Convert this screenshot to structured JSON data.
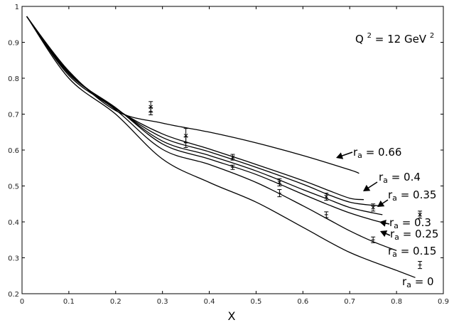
{
  "chart_data": {
    "type": "line",
    "xlabel": "X",
    "ylabel": "",
    "xlim": [
      0,
      0.9
    ],
    "ylim": [
      0.2,
      1.0
    ],
    "xticks": [
      "0",
      "0.1",
      "0.2",
      "0.3",
      "0.4",
      "0.5",
      "0.6",
      "0.7",
      "0.8",
      "0.9"
    ],
    "yticks": [
      "0.2",
      "0.3",
      "0.4",
      "0.5",
      "0.6",
      "0.7",
      "0.8",
      "0.9",
      "1"
    ],
    "annotation": {
      "text": "Q",
      "sup1": "2",
      "mid": "= 12 GeV",
      "sup2": "2"
    },
    "series": [
      {
        "name": "rₐ = 0.66",
        "label_prefix": "r",
        "label_sub": "a",
        "label_value": " = 0.66",
        "x": [
          0.01,
          0.1,
          0.2,
          0.3,
          0.4,
          0.5,
          0.6,
          0.7,
          0.72
        ],
        "y": [
          0.972,
          0.82,
          0.71,
          0.675,
          0.65,
          0.62,
          0.585,
          0.545,
          0.535
        ]
      },
      {
        "name": "rₐ = 0.4",
        "label_prefix": "r",
        "label_sub": "a",
        "label_value": " = 0.4",
        "x": [
          0.01,
          0.1,
          0.2,
          0.3,
          0.4,
          0.5,
          0.6,
          0.65,
          0.7,
          0.73
        ],
        "y": [
          0.972,
          0.817,
          0.715,
          0.645,
          0.603,
          0.56,
          0.515,
          0.49,
          0.466,
          0.462
        ]
      },
      {
        "name": "rₐ = 0.35",
        "label_prefix": "r",
        "label_sub": "a",
        "label_value": " = 0.35",
        "x": [
          0.01,
          0.1,
          0.2,
          0.3,
          0.4,
          0.5,
          0.6,
          0.65,
          0.7,
          0.75,
          0.77
        ],
        "y": [
          0.972,
          0.815,
          0.716,
          0.635,
          0.595,
          0.552,
          0.505,
          0.478,
          0.455,
          0.446,
          0.446
        ]
      },
      {
        "name": "rₐ = 0.3",
        "label_prefix": "r",
        "label_sub": "a",
        "label_value": " = 0.3",
        "x": [
          0.01,
          0.1,
          0.2,
          0.3,
          0.4,
          0.5,
          0.6,
          0.65,
          0.7,
          0.75,
          0.77
        ],
        "y": [
          0.972,
          0.813,
          0.717,
          0.625,
          0.585,
          0.542,
          0.49,
          0.465,
          0.44,
          0.425,
          0.42
        ]
      },
      {
        "name": "rₐ = 0.25",
        "label_prefix": "r",
        "label_sub": "a",
        "label_value": " = 0.25",
        "x": [
          0.01,
          0.1,
          0.2,
          0.3,
          0.4,
          0.5,
          0.6,
          0.65,
          0.7,
          0.75,
          0.78
        ],
        "y": [
          0.972,
          0.812,
          0.718,
          0.617,
          0.575,
          0.532,
          0.477,
          0.45,
          0.425,
          0.405,
          0.395
        ]
      },
      {
        "name": "rₐ = 0.15",
        "label_prefix": "r",
        "label_sub": "a",
        "label_value": " = 0.15",
        "x": [
          0.01,
          0.1,
          0.2,
          0.3,
          0.4,
          0.5,
          0.6,
          0.65,
          0.7,
          0.75,
          0.8
        ],
        "y": [
          0.972,
          0.808,
          0.712,
          0.602,
          0.56,
          0.51,
          0.445,
          0.41,
          0.375,
          0.345,
          0.32
        ]
      },
      {
        "name": "rₐ = 0",
        "label_prefix": "r",
        "label_sub": "a",
        "label_value": " = 0",
        "x": [
          0.01,
          0.1,
          0.2,
          0.3,
          0.4,
          0.5,
          0.6,
          0.7,
          0.8,
          0.84
        ],
        "y": [
          0.972,
          0.8,
          0.7,
          0.575,
          0.51,
          0.455,
          0.385,
          0.315,
          0.265,
          0.245
        ]
      }
    ],
    "data_points": [
      {
        "x": 0.275,
        "y": 0.72,
        "err": 0.015,
        "marker": "x"
      },
      {
        "x": 0.275,
        "y": 0.708,
        "err": 0.01,
        "marker": "+"
      },
      {
        "x": 0.35,
        "y": 0.64,
        "err": 0.02,
        "marker": "x"
      },
      {
        "x": 0.35,
        "y": 0.622,
        "err": 0.015,
        "marker": "+"
      },
      {
        "x": 0.45,
        "y": 0.58,
        "err": 0.008,
        "marker": "x"
      },
      {
        "x": 0.45,
        "y": 0.552,
        "err": 0.006,
        "marker": "+"
      },
      {
        "x": 0.55,
        "y": 0.51,
        "err": 0.01,
        "marker": "x"
      },
      {
        "x": 0.55,
        "y": 0.48,
        "err": 0.01,
        "marker": "+"
      },
      {
        "x": 0.65,
        "y": 0.47,
        "err": 0.01,
        "marker": "x"
      },
      {
        "x": 0.65,
        "y": 0.42,
        "err": 0.008,
        "marker": "+"
      },
      {
        "x": 0.75,
        "y": 0.44,
        "err": 0.01,
        "marker": "x"
      },
      {
        "x": 0.75,
        "y": 0.35,
        "err": 0.008,
        "marker": "+"
      },
      {
        "x": 0.85,
        "y": 0.42,
        "err": 0.01,
        "marker": "x"
      },
      {
        "x": 0.85,
        "y": 0.28,
        "err": 0.01,
        "marker": "+"
      }
    ]
  }
}
